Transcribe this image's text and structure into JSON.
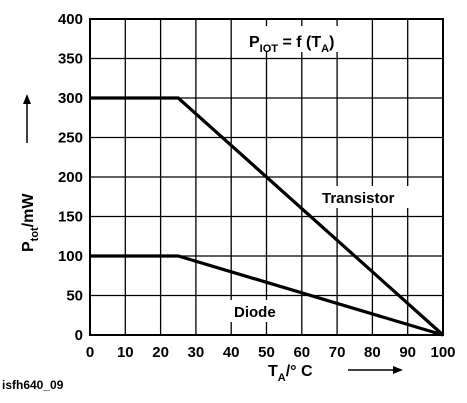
{
  "chart_data": {
    "type": "line",
    "x": [
      0,
      25,
      100
    ],
    "series": [
      {
        "label": "Transistor",
        "values": [
          300,
          300,
          0
        ]
      },
      {
        "label": "Diode",
        "values": [
          100,
          100,
          0
        ]
      }
    ],
    "xticks": [
      "0",
      "10",
      "20",
      "30",
      "40",
      "50",
      "60",
      "70",
      "80",
      "90",
      "100"
    ],
    "yticks": [
      "0",
      "50",
      "100",
      "150",
      "200",
      "250",
      "300",
      "350",
      "400"
    ],
    "xlim": [
      0,
      100
    ],
    "ylim": [
      0,
      400
    ],
    "grid": true,
    "formula": {
      "pre": "P",
      "sub1": "IOT",
      "mid": " = f (T",
      "sub2": "A",
      "post": ")"
    },
    "xlabel": {
      "main": "T",
      "sub": "A",
      "post": "/° C"
    },
    "ylabel": {
      "main": "P",
      "sub": "tot",
      "post": "/mW"
    },
    "colors": {
      "grid": "#000000",
      "series": "#000000",
      "background": "#ffffff"
    }
  },
  "figure_id": "isfh640_09"
}
